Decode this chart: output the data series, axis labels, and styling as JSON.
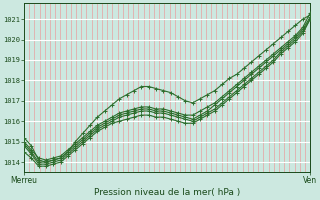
{
  "title": "Pression niveau de la mer( hPa )",
  "xlabel_left": "Merreu",
  "xlabel_right": "Ven",
  "ylim": [
    1013.5,
    1021.8
  ],
  "xlim": [
    0,
    100
  ],
  "yticks": [
    1014,
    1015,
    1016,
    1017,
    1018,
    1019,
    1020,
    1021
  ],
  "bg_color": "#cce8e0",
  "grid_color_major_x": "#ffffff",
  "grid_color_minor_x": "#e8a0a0",
  "grid_color_major_y": "#ffffff",
  "line_color": "#2d6e2d",
  "marker": "+",
  "line_width": 0.8,
  "series": [
    [
      1015.2,
      1014.8,
      1014.1,
      1014.0,
      1014.1,
      1014.2,
      1014.5,
      1015.0,
      1015.4,
      1015.8,
      1016.2,
      1016.5,
      1016.8,
      1017.1,
      1017.3,
      1017.5,
      1017.7,
      1017.7,
      1017.6,
      1017.5,
      1017.4,
      1017.2,
      1017.0,
      1016.9,
      1017.1,
      1017.3,
      1017.5,
      1017.8,
      1018.1,
      1018.3,
      1018.6,
      1018.9,
      1019.2,
      1019.5,
      1019.8,
      1020.1,
      1020.4,
      1020.7,
      1021.0,
      1021.2
    ],
    [
      1014.8,
      1014.4,
      1013.9,
      1013.9,
      1014.0,
      1014.1,
      1014.4,
      1014.7,
      1015.0,
      1015.3,
      1015.6,
      1015.8,
      1016.0,
      1016.2,
      1016.3,
      1016.4,
      1016.5,
      1016.5,
      1016.4,
      1016.4,
      1016.3,
      1016.2,
      1016.1,
      1016.0,
      1016.2,
      1016.4,
      1016.6,
      1016.9,
      1017.2,
      1017.5,
      1017.8,
      1018.1,
      1018.4,
      1018.7,
      1019.0,
      1019.4,
      1019.7,
      1020.0,
      1020.4,
      1021.0
    ],
    [
      1014.5,
      1014.2,
      1013.8,
      1013.8,
      1013.9,
      1014.0,
      1014.3,
      1014.6,
      1014.9,
      1015.2,
      1015.5,
      1015.7,
      1015.9,
      1016.0,
      1016.1,
      1016.2,
      1016.3,
      1016.3,
      1016.2,
      1016.2,
      1016.1,
      1016.0,
      1015.9,
      1015.9,
      1016.1,
      1016.3,
      1016.5,
      1016.8,
      1017.1,
      1017.4,
      1017.7,
      1018.0,
      1018.3,
      1018.6,
      1018.9,
      1019.3,
      1019.6,
      1019.9,
      1020.3,
      1021.0
    ],
    [
      1015.0,
      1014.6,
      1014.2,
      1014.1,
      1014.2,
      1014.3,
      1014.6,
      1014.9,
      1015.2,
      1015.5,
      1015.8,
      1016.0,
      1016.2,
      1016.4,
      1016.5,
      1016.6,
      1016.7,
      1016.7,
      1016.6,
      1016.6,
      1016.5,
      1016.4,
      1016.3,
      1016.3,
      1016.5,
      1016.7,
      1016.9,
      1017.2,
      1017.5,
      1017.8,
      1018.1,
      1018.4,
      1018.7,
      1019.0,
      1019.3,
      1019.6,
      1019.9,
      1020.2,
      1020.6,
      1021.3
    ],
    [
      1014.9,
      1014.5,
      1014.0,
      1014.0,
      1014.1,
      1014.2,
      1014.5,
      1014.8,
      1015.1,
      1015.4,
      1015.7,
      1015.9,
      1016.1,
      1016.3,
      1016.4,
      1016.5,
      1016.6,
      1016.6,
      1016.5,
      1016.5,
      1016.4,
      1016.3,
      1016.2,
      1016.1,
      1016.3,
      1016.5,
      1016.8,
      1017.1,
      1017.4,
      1017.7,
      1018.0,
      1018.3,
      1018.6,
      1018.9,
      1019.2,
      1019.5,
      1019.8,
      1020.1,
      1020.5,
      1021.1
    ]
  ]
}
